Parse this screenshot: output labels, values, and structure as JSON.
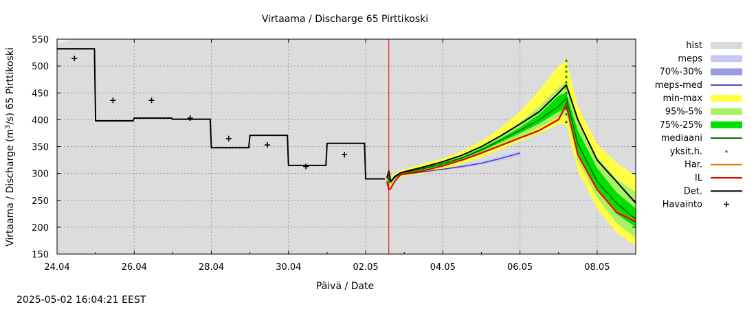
{
  "chart_data": {
    "type": "line",
    "title": "Virtaama / Discharge  65 Pirttikoski",
    "xlabel": "Päivä / Date",
    "ylabel_prefix": "Virtaama / Discharge (m",
    "ylabel_sup": "3",
    "ylabel_suffix": "/s)  65 Pirttikoski",
    "ylim": [
      150,
      550
    ],
    "y_ticks": [
      150,
      200,
      250,
      300,
      350,
      400,
      450,
      500,
      550
    ],
    "xlim_days": [
      0,
      15
    ],
    "x_ticks": [
      {
        "day": 0,
        "label": "24.04"
      },
      {
        "day": 2,
        "label": "26.04"
      },
      {
        "day": 4,
        "label": "28.04"
      },
      {
        "day": 6,
        "label": "30.04"
      },
      {
        "day": 8,
        "label": "02.05"
      },
      {
        "day": 10,
        "label": "04.05"
      },
      {
        "day": 12,
        "label": "06.05"
      },
      {
        "day": 14,
        "label": "08.05"
      }
    ],
    "grid": true,
    "forecast_start_day": 8.6,
    "observed_step": [
      [
        0,
        532
      ],
      [
        0.97,
        532
      ],
      [
        1.0,
        398
      ],
      [
        1.97,
        398
      ],
      [
        2.0,
        403
      ],
      [
        2.97,
        403
      ],
      [
        3.0,
        401
      ],
      [
        3.97,
        401
      ],
      [
        4.0,
        348
      ],
      [
        4.97,
        348
      ],
      [
        5.0,
        371
      ],
      [
        5.97,
        371
      ],
      [
        6.0,
        315
      ],
      [
        6.97,
        315
      ],
      [
        7.0,
        356
      ],
      [
        7.97,
        356
      ],
      [
        8.0,
        290
      ],
      [
        8.5,
        290
      ]
    ],
    "havainto_points": [
      [
        0.45,
        514
      ],
      [
        1.45,
        436
      ],
      [
        2.45,
        436
      ],
      [
        3.45,
        403
      ],
      [
        4.45,
        365
      ],
      [
        5.45,
        353
      ],
      [
        6.45,
        313
      ],
      [
        7.45,
        335
      ]
    ],
    "forecast_days": [
      8.55,
      8.6,
      8.65,
      8.75,
      8.9,
      9.0,
      9.5,
      10.0,
      10.5,
      11.0,
      11.5,
      12.0,
      12.5,
      13.0,
      13.2,
      13.5,
      14.0,
      14.5,
      15.0
    ],
    "minmax_low": [
      285,
      272,
      270,
      285,
      293,
      295,
      300,
      308,
      318,
      330,
      345,
      360,
      375,
      392,
      390,
      305,
      235,
      190,
      165
    ],
    "minmax_high": [
      300,
      312,
      290,
      300,
      305,
      308,
      318,
      328,
      342,
      360,
      385,
      415,
      455,
      500,
      510,
      425,
      355,
      320,
      295
    ],
    "p95_5_low": [
      288,
      278,
      278,
      289,
      296,
      298,
      305,
      313,
      323,
      336,
      352,
      368,
      385,
      405,
      410,
      325,
      255,
      208,
      180
    ],
    "p95_5_high": [
      296,
      305,
      286,
      296,
      302,
      305,
      314,
      322,
      334,
      350,
      370,
      395,
      425,
      460,
      470,
      395,
      330,
      290,
      265
    ],
    "p75_25_low": [
      290,
      283,
      282,
      291,
      298,
      300,
      307,
      316,
      327,
      341,
      358,
      375,
      393,
      415,
      420,
      340,
      272,
      225,
      200
    ],
    "p75_25_high": [
      294,
      300,
      285,
      294,
      301,
      303,
      311,
      320,
      331,
      347,
      365,
      386,
      410,
      445,
      450,
      380,
      310,
      265,
      235
    ],
    "mediaani": [
      292,
      290,
      284,
      292,
      300,
      302,
      309,
      318,
      329,
      344,
      362,
      380,
      400,
      425,
      440,
      355,
      285,
      245,
      215
    ],
    "il": [
      285,
      270,
      272,
      285,
      297,
      299,
      305,
      314,
      325,
      338,
      352,
      366,
      380,
      400,
      428,
      335,
      270,
      228,
      210
    ],
    "har": [
      286,
      271,
      273,
      286,
      298,
      300,
      306,
      315,
      326,
      339,
      353,
      367,
      381,
      402,
      430,
      337,
      272,
      230,
      212
    ],
    "det": [
      292,
      305,
      285,
      294,
      301,
      303,
      312,
      322,
      334,
      350,
      370,
      392,
      415,
      450,
      465,
      400,
      325,
      285,
      245
    ],
    "meps_days": [
      9.0,
      9.5,
      10.0,
      10.5,
      11.0,
      11.5,
      12.0
    ],
    "meps_low": [
      296,
      302,
      306,
      310,
      316,
      324,
      333
    ],
    "meps_high": [
      300,
      305,
      310,
      316,
      323,
      332,
      342
    ],
    "meps_med": [
      298,
      303,
      308,
      313,
      319,
      328,
      338
    ],
    "hist_top": [
      [
        0,
        542
      ],
      [
        0.5,
        550
      ],
      [
        0.9,
        550
      ]
    ],
    "yksit_h": [
      [
        9.3,
        306
      ],
      [
        13.2,
        510
      ],
      [
        13.2,
        499
      ],
      [
        13.2,
        490
      ],
      [
        13.2,
        480
      ],
      [
        13.2,
        470
      ],
      [
        13.2,
        460
      ],
      [
        13.2,
        450
      ],
      [
        13.2,
        440
      ],
      [
        13.2,
        430
      ],
      [
        13.2,
        420
      ],
      [
        13.2,
        410
      ],
      [
        13.2,
        396
      ]
    ],
    "legend": [
      {
        "label": "hist",
        "kind": "rect",
        "color": "#d9d9d9"
      },
      {
        "label": "meps",
        "kind": "rect",
        "color": "#c8c8f5"
      },
      {
        "label": "70%-30%",
        "kind": "rect",
        "color": "#9b9be0"
      },
      {
        "label": "meps-med",
        "kind": "line",
        "color": "#4040cc"
      },
      {
        "label": "min-max",
        "kind": "rect",
        "color": "#ffff44"
      },
      {
        "label": "95%-5%",
        "kind": "rect",
        "color": "#aaf066"
      },
      {
        "label": "75%-25%",
        "kind": "rect",
        "color": "#00e000"
      },
      {
        "label": "mediaani",
        "kind": "line",
        "color": "#006600"
      },
      {
        "label": "yksit.h.",
        "kind": "dot",
        "color": "#008800"
      },
      {
        "label": "Har.",
        "kind": "line",
        "color": "#e87800"
      },
      {
        "label": "IL",
        "kind": "line",
        "color": "#e00000"
      },
      {
        "label": "Det.",
        "kind": "line",
        "color": "#000000"
      },
      {
        "label": "Havainto",
        "kind": "plus",
        "color": "#000000"
      }
    ]
  },
  "footer": {
    "timestamp": "2025-05-02 16:04:21 EEST"
  }
}
